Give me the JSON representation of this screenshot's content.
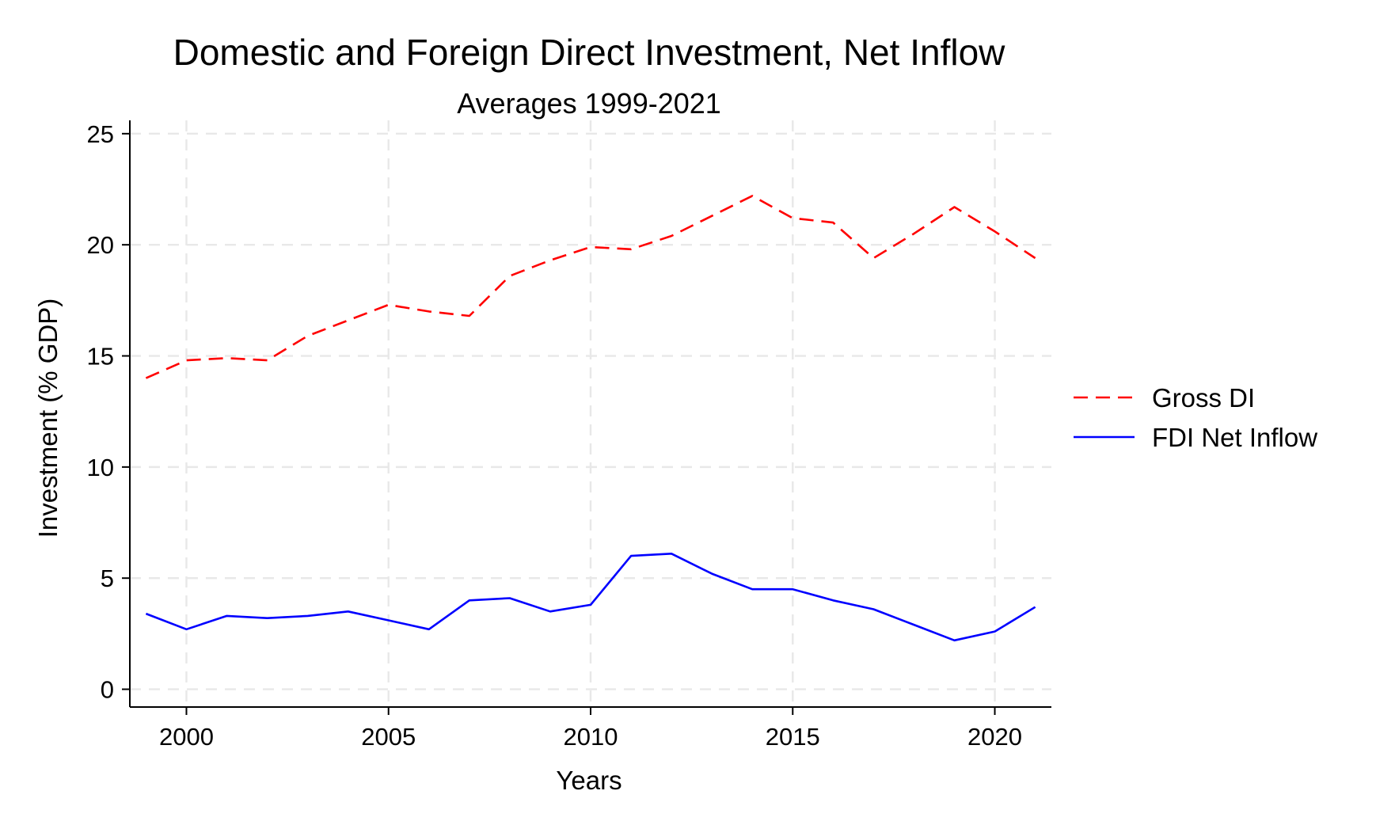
{
  "chart_data": {
    "type": "line",
    "title": "Domestic and Foreign Direct Investment, Net Inflow",
    "subtitle": "Averages 1999-2021",
    "xlabel": "Years",
    "ylabel": "Investment (% GDP)",
    "xlim": [
      1998.6,
      2021.4
    ],
    "ylim": [
      -0.8,
      25.6
    ],
    "xticks": [
      2000,
      2005,
      2010,
      2015,
      2020
    ],
    "yticks": [
      0,
      5,
      10,
      15,
      20,
      25
    ],
    "grid": true,
    "legend_position": "right",
    "x": [
      1999,
      2000,
      2001,
      2002,
      2003,
      2004,
      2005,
      2006,
      2007,
      2008,
      2009,
      2010,
      2011,
      2012,
      2013,
      2014,
      2015,
      2016,
      2017,
      2018,
      2019,
      2020,
      2021
    ],
    "series": [
      {
        "name": "Gross DI",
        "color": "#ff0000",
        "style": "dashed",
        "values": [
          14.0,
          14.8,
          14.9,
          14.8,
          15.9,
          16.6,
          17.3,
          17.0,
          16.8,
          18.6,
          19.3,
          19.9,
          19.8,
          20.4,
          21.3,
          22.2,
          21.2,
          21.0,
          19.4,
          20.5,
          21.7,
          20.6,
          19.4
        ]
      },
      {
        "name": "FDI Net Inflow",
        "color": "#0000ff",
        "style": "solid",
        "values": [
          3.4,
          2.7,
          3.3,
          3.2,
          3.3,
          3.5,
          3.1,
          2.7,
          4.0,
          4.1,
          3.5,
          3.8,
          6.0,
          6.1,
          5.2,
          4.5,
          4.5,
          4.0,
          3.6,
          2.9,
          2.2,
          2.6,
          3.7
        ]
      }
    ]
  }
}
